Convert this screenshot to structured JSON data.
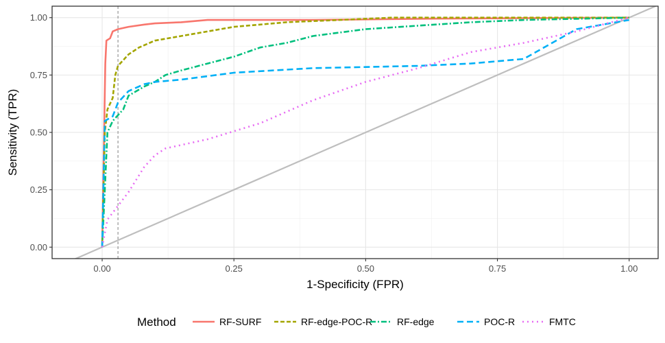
{
  "chart_data": {
    "type": "line",
    "title": "",
    "xlabel": "1-Specificity (FPR)",
    "ylabel": "Sensitivity (TPR)",
    "xlim": [
      -0.095,
      1.055
    ],
    "ylim": [
      -0.05,
      1.05
    ],
    "x_ticks": [
      0.0,
      0.25,
      0.5,
      0.75,
      1.0
    ],
    "x_tick_labels": [
      "0.00",
      "0.25",
      "0.50",
      "0.75",
      "1.00"
    ],
    "y_ticks": [
      0.0,
      0.25,
      0.5,
      0.75,
      1.0
    ],
    "y_tick_labels": [
      "0.00",
      "0.25",
      "0.50",
      "0.75",
      "1.00"
    ],
    "grid": true,
    "legend_position": "bottom",
    "legend_title": "Method",
    "reference_diagonal": true,
    "reference_vline_x": 0.03,
    "series": [
      {
        "name": "RF-SURF",
        "color": "#F8766D",
        "dash": "solid",
        "points": [
          [
            0.0,
            0.0
          ],
          [
            0.003,
            0.4
          ],
          [
            0.006,
            0.8
          ],
          [
            0.008,
            0.9
          ],
          [
            0.015,
            0.91
          ],
          [
            0.02,
            0.94
          ],
          [
            0.03,
            0.95
          ],
          [
            0.05,
            0.96
          ],
          [
            0.08,
            0.97
          ],
          [
            0.1,
            0.975
          ],
          [
            0.15,
            0.98
          ],
          [
            0.2,
            0.99
          ],
          [
            0.4,
            0.99
          ],
          [
            0.6,
            0.995
          ],
          [
            0.8,
            0.998
          ],
          [
            1.0,
            1.0
          ]
        ]
      },
      {
        "name": "RF-edge-POC-R",
        "color": "#A3A500",
        "dash": "6,3",
        "points": [
          [
            0.0,
            0.0
          ],
          [
            0.005,
            0.5
          ],
          [
            0.01,
            0.6
          ],
          [
            0.02,
            0.65
          ],
          [
            0.025,
            0.75
          ],
          [
            0.03,
            0.79
          ],
          [
            0.05,
            0.84
          ],
          [
            0.07,
            0.87
          ],
          [
            0.1,
            0.9
          ],
          [
            0.15,
            0.92
          ],
          [
            0.2,
            0.94
          ],
          [
            0.25,
            0.96
          ],
          [
            0.3,
            0.97
          ],
          [
            0.35,
            0.98
          ],
          [
            0.45,
            0.99
          ],
          [
            0.55,
            1.0
          ],
          [
            1.0,
            1.0
          ]
        ]
      },
      {
        "name": "RF-edge",
        "color": "#00BF7D",
        "dash": "8,3,2,3",
        "points": [
          [
            0.0,
            0.0
          ],
          [
            0.005,
            0.25
          ],
          [
            0.01,
            0.5
          ],
          [
            0.02,
            0.55
          ],
          [
            0.04,
            0.6
          ],
          [
            0.05,
            0.66
          ],
          [
            0.08,
            0.7
          ],
          [
            0.1,
            0.72
          ],
          [
            0.12,
            0.75
          ],
          [
            0.15,
            0.77
          ],
          [
            0.2,
            0.8
          ],
          [
            0.25,
            0.83
          ],
          [
            0.3,
            0.87
          ],
          [
            0.35,
            0.89
          ],
          [
            0.4,
            0.92
          ],
          [
            0.5,
            0.95
          ],
          [
            0.6,
            0.965
          ],
          [
            0.7,
            0.98
          ],
          [
            0.8,
            0.99
          ],
          [
            0.9,
            0.995
          ],
          [
            1.0,
            1.0
          ]
        ]
      },
      {
        "name": "POC-R",
        "color": "#00B0F6",
        "dash": "9,5",
        "points": [
          [
            0.0,
            0.0
          ],
          [
            0.005,
            0.55
          ],
          [
            0.02,
            0.57
          ],
          [
            0.03,
            0.63
          ],
          [
            0.05,
            0.68
          ],
          [
            0.08,
            0.71
          ],
          [
            0.1,
            0.72
          ],
          [
            0.15,
            0.73
          ],
          [
            0.25,
            0.76
          ],
          [
            0.4,
            0.78
          ],
          [
            0.5,
            0.785
          ],
          [
            0.6,
            0.79
          ],
          [
            0.7,
            0.8
          ],
          [
            0.8,
            0.82
          ],
          [
            0.9,
            0.95
          ],
          [
            1.0,
            0.99
          ]
        ]
      },
      {
        "name": "FMTC",
        "color": "#E76BF3",
        "dash": "2,5",
        "points": [
          [
            0.0,
            0.0
          ],
          [
            0.01,
            0.12
          ],
          [
            0.03,
            0.18
          ],
          [
            0.05,
            0.24
          ],
          [
            0.08,
            0.35
          ],
          [
            0.1,
            0.4
          ],
          [
            0.12,
            0.43
          ],
          [
            0.2,
            0.47
          ],
          [
            0.3,
            0.54
          ],
          [
            0.4,
            0.64
          ],
          [
            0.5,
            0.72
          ],
          [
            0.6,
            0.78
          ],
          [
            0.7,
            0.85
          ],
          [
            0.8,
            0.89
          ],
          [
            0.9,
            0.94
          ],
          [
            1.0,
            1.0
          ]
        ]
      }
    ]
  }
}
